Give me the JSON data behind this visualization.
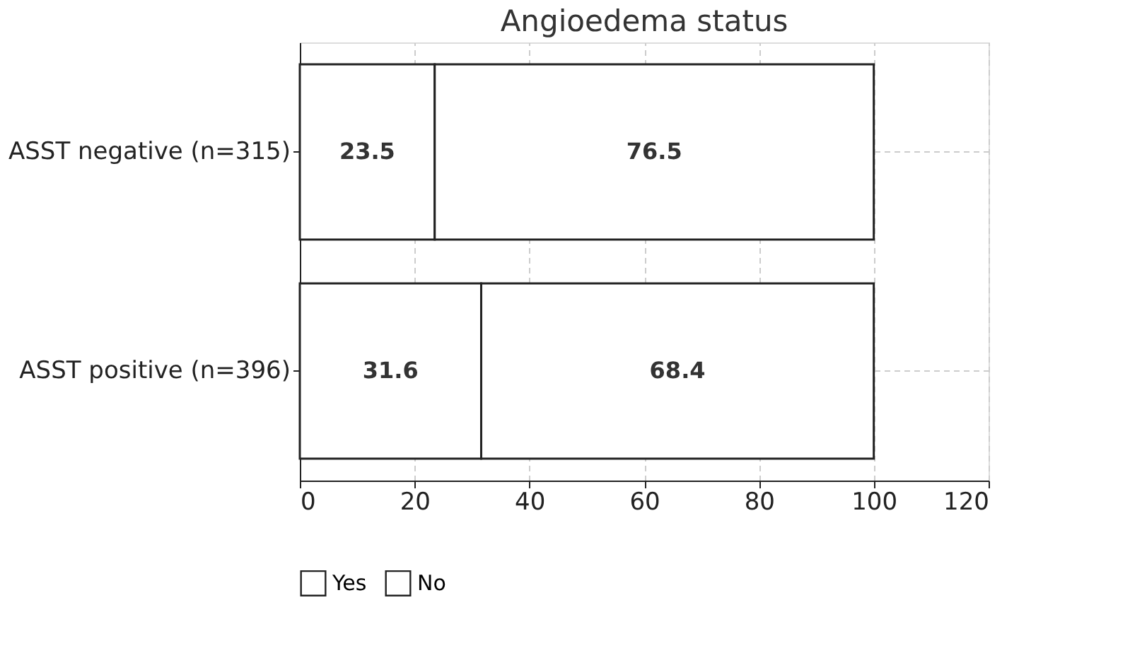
{
  "chart_data": {
    "type": "bar",
    "orientation": "horizontal",
    "stacked": true,
    "title": "Angioedema status",
    "categories": [
      "ASST negative (n=315)",
      "ASST positive (n=396)"
    ],
    "series": [
      {
        "name": "Yes",
        "color": "#ffffff",
        "values": [
          23.5,
          31.6
        ]
      },
      {
        "name": "No",
        "color": "#ffffff",
        "values": [
          76.5,
          68.4
        ]
      }
    ],
    "xlim": [
      0,
      120
    ],
    "xticks": [
      0,
      20,
      40,
      60,
      80,
      100,
      120
    ],
    "grid": true,
    "data_labels": true,
    "legend": "bottom"
  }
}
